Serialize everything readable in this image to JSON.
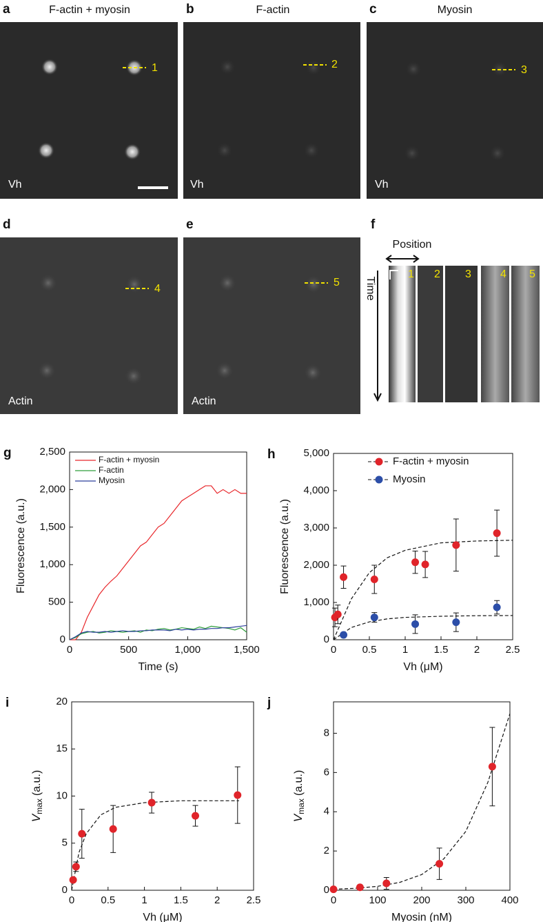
{
  "panels": [
    {
      "label": "a",
      "title": "F-actin + myosin",
      "channel": "Vh",
      "line": "1"
    },
    {
      "label": "b",
      "title": "F-actin",
      "channel": "Vh",
      "line": "2"
    },
    {
      "label": "c",
      "title": "Myosin",
      "channel": "Vh",
      "line": "3"
    },
    {
      "label": "d",
      "channel": "Actin",
      "line": "4"
    },
    {
      "label": "e",
      "channel": "Actin",
      "line": "5"
    },
    {
      "label": "f",
      "position": "Position",
      "time": "Time",
      "lanes": [
        "1",
        "2",
        "3",
        "4",
        "5"
      ]
    }
  ],
  "chart_data": [
    {
      "panel": "g",
      "type": "line",
      "x_label": "Time (s)",
      "y_label": "Fluorescence (a.u.)",
      "legend": "upper left",
      "xlim": [
        0,
        1500
      ],
      "ylim": [
        0,
        2500
      ],
      "xticks": [
        0,
        500,
        {
          "value": 1000,
          "label": "1,000"
        },
        {
          "value": 1500,
          "label": "1,500"
        }
      ],
      "yticks": [
        0,
        500,
        {
          "value": 1000,
          "label": "1,000"
        },
        {
          "value": 1500,
          "label": "1,500"
        },
        {
          "value": 2000,
          "label": "2,000"
        },
        {
          "value": 2500,
          "label": "2,500"
        }
      ],
      "x": [
        0,
        50,
        100,
        150,
        200,
        250,
        300,
        350,
        400,
        450,
        500,
        550,
        600,
        650,
        700,
        750,
        800,
        850,
        900,
        950,
        1000,
        1050,
        1100,
        1150,
        1200,
        1250,
        1300,
        1350,
        1400,
        1450,
        1500
      ],
      "series": [
        {
          "name": "F-actin + myosin",
          "color": "#e8262a",
          "values": [
            0,
            0,
            100,
            300,
            450,
            600,
            700,
            780,
            850,
            950,
            1050,
            1150,
            1250,
            1300,
            1400,
            1500,
            1550,
            1650,
            1750,
            1850,
            1900,
            1950,
            2000,
            2050,
            2050,
            1950,
            2000,
            1950,
            2000,
            1950,
            1950
          ]
        },
        {
          "name": "F-actin",
          "color": "#2e9e3a",
          "values": [
            0,
            30,
            80,
            100,
            110,
            90,
            100,
            120,
            110,
            100,
            110,
            120,
            100,
            130,
            120,
            140,
            150,
            130,
            140,
            160,
            150,
            140,
            170,
            150,
            180,
            170,
            160,
            150,
            130,
            160,
            100
          ]
        },
        {
          "name": "Myosin",
          "color": "#2a3f9a",
          "values": [
            0,
            40,
            90,
            110,
            100,
            100,
            110,
            100,
            110,
            120,
            110,
            110,
            120,
            120,
            130,
            130,
            130,
            120,
            140,
            130,
            140,
            130,
            140,
            140,
            150,
            150,
            160,
            160,
            170,
            180,
            190
          ]
        }
      ]
    },
    {
      "panel": "h",
      "type": "scatter",
      "x_label": "Vh (μM)",
      "y_label": "Fluorescence (a.u.)",
      "legend": "upper right",
      "xlim": [
        0,
        2.5
      ],
      "ylim": [
        0,
        5000
      ],
      "xticks": [
        0,
        0.5,
        1,
        1.5,
        2,
        2.5
      ],
      "yticks": [
        0,
        {
          "value": 1000,
          "label": "1,000"
        },
        {
          "value": 2000,
          "label": "2,000"
        },
        {
          "value": 3000,
          "label": "3,000"
        },
        {
          "value": 4000,
          "label": "4,000"
        },
        {
          "value": 5000,
          "label": "5,000"
        }
      ],
      "series": [
        {
          "name": "F-actin + myosin",
          "color": "#e0242a",
          "x": [
            0.02,
            0.06,
            0.14,
            0.57,
            1.14,
            1.28,
            1.71,
            2.28
          ],
          "values": [
            600,
            680,
            1680,
            1620,
            2080,
            2020,
            2540,
            2860
          ],
          "errors": [
            250,
            250,
            300,
            380,
            300,
            350,
            700,
            620
          ],
          "fit_x": [
            0,
            0.25,
            0.5,
            0.75,
            1,
            1.5,
            2,
            2.5
          ],
          "fit_values": [
            0,
            1100,
            1800,
            2200,
            2400,
            2600,
            2650,
            2670
          ]
        },
        {
          "name": "Myosin",
          "color": "#2c4ea8",
          "x": [
            0.14,
            0.57,
            1.14,
            1.71,
            2.28
          ],
          "values": [
            130,
            600,
            420,
            470,
            870
          ],
          "errors": [
            50,
            130,
            250,
            250,
            180
          ],
          "fit_x": [
            0,
            0.25,
            0.5,
            0.75,
            1,
            1.5,
            2,
            2.5
          ],
          "fit_values": [
            0,
            330,
            480,
            560,
            600,
            630,
            645,
            650
          ]
        }
      ]
    },
    {
      "panel": "i",
      "type": "scatter",
      "x_label": "Vh (μM)",
      "y_symbol": "V",
      "y_subscript": "max",
      "y_unit": "(a.u.)",
      "xlim": [
        0,
        2.5
      ],
      "ylim": [
        0,
        20
      ],
      "xticks": [
        0,
        0.5,
        1,
        1.5,
        2,
        2.5
      ],
      "yticks": [
        0,
        5,
        10,
        15,
        20
      ],
      "series": [
        {
          "color": "#e0242a",
          "x": [
            0.02,
            0.06,
            0.14,
            0.57,
            1.1,
            1.7,
            2.28
          ],
          "values": [
            1.1,
            2.5,
            6.0,
            6.5,
            9.3,
            7.9,
            10.1
          ],
          "errors": [
            0.2,
            0.5,
            2.6,
            2.5,
            1.1,
            1.1,
            3.0
          ],
          "fit_x": [
            0,
            0.1,
            0.2,
            0.4,
            0.6,
            1,
            1.5,
            2.3
          ],
          "fit_values": [
            0,
            4,
            6,
            8,
            8.8,
            9.3,
            9.5,
            9.5
          ]
        }
      ]
    },
    {
      "panel": "j",
      "type": "scatter",
      "x_label": "Myosin (nM)",
      "y_symbol": "V",
      "y_subscript": "max",
      "y_unit": "(a.u.)",
      "xlim": [
        0,
        400
      ],
      "ylim": [
        0,
        9.6
      ],
      "xticks": [
        0,
        100,
        200,
        300,
        400
      ],
      "yticks": [
        0,
        2,
        4,
        6,
        8
      ],
      "series": [
        {
          "color": "#e0242a",
          "x": [
            0,
            60,
            120,
            240,
            360
          ],
          "values": [
            0.05,
            0.15,
            0.35,
            1.35,
            6.3
          ],
          "errors": [
            0,
            0.1,
            0.3,
            0.8,
            2.0
          ],
          "fit_x": [
            0,
            50,
            100,
            150,
            200,
            250,
            300,
            350,
            400
          ],
          "fit_values": [
            0.05,
            0.1,
            0.2,
            0.4,
            0.8,
            1.6,
            3.0,
            5.5,
            9.0
          ]
        }
      ]
    }
  ]
}
